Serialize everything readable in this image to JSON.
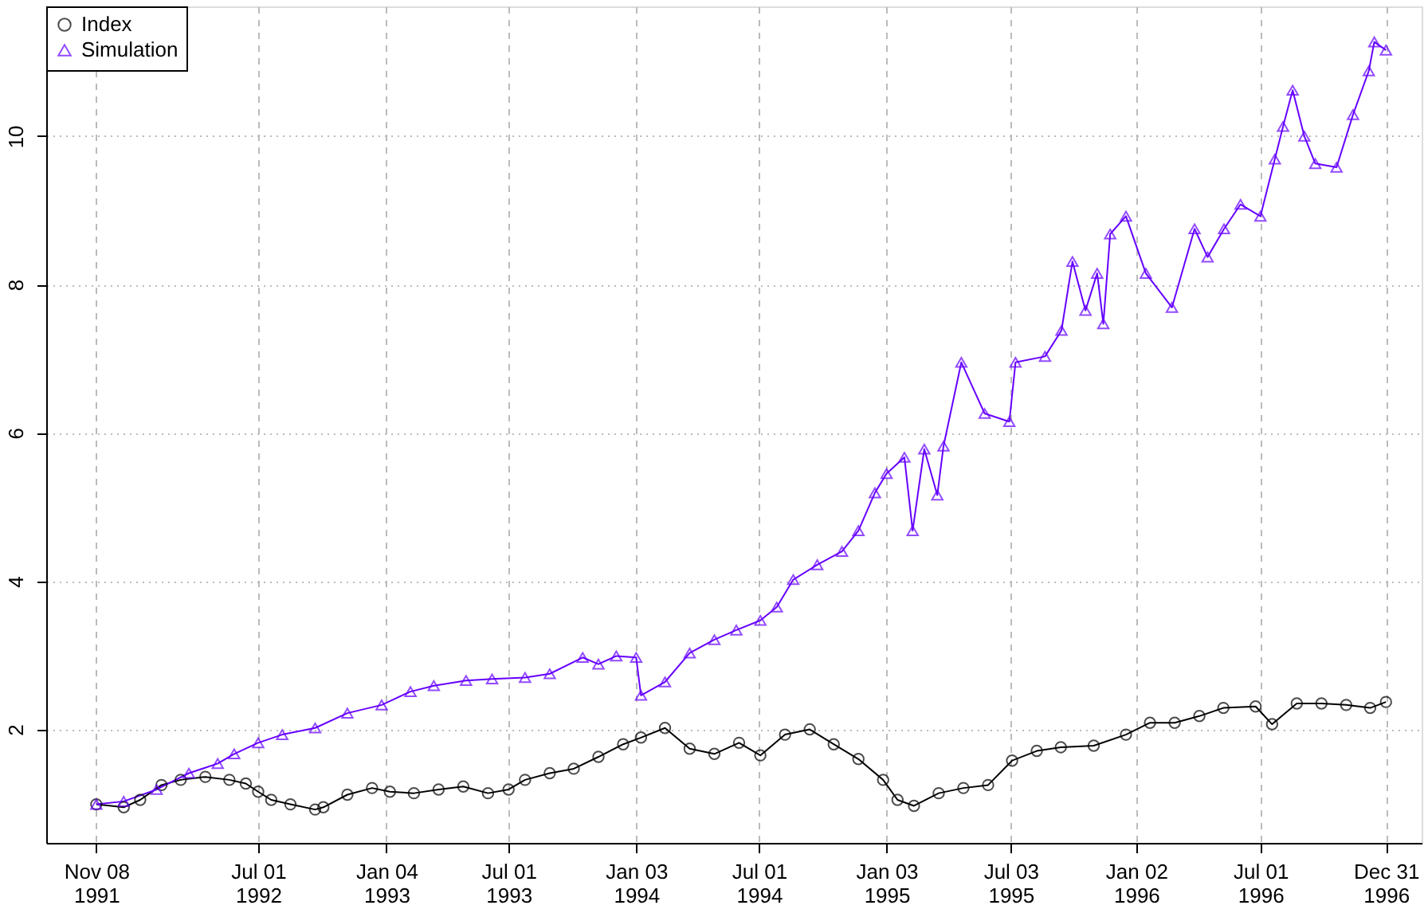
{
  "chart_data": {
    "type": "line",
    "xlim": [
      "1991-08-27",
      "1997-02-21"
    ],
    "xticks": [
      {
        "value": "1991-11-08",
        "label": "Nov 08\n1991"
      },
      {
        "value": "1992-07-01",
        "label": "Jul 01\n1992"
      },
      {
        "value": "1993-01-04",
        "label": "Jan 04\n1993"
      },
      {
        "value": "1993-07-01",
        "label": "Jul 01\n1993"
      },
      {
        "value": "1994-01-03",
        "label": "Jan 03\n1994"
      },
      {
        "value": "1994-07-01",
        "label": "Jul 01\n1994"
      },
      {
        "value": "1995-01-03",
        "label": "Jan 03\n1995"
      },
      {
        "value": "1995-07-03",
        "label": "Jul 03\n1995"
      },
      {
        "value": "1996-01-02",
        "label": "Jan 02\n1996"
      },
      {
        "value": "1996-07-01",
        "label": "Jul 01\n1996"
      },
      {
        "value": "1996-12-31",
        "label": "Dec 31\n1996"
      }
    ],
    "ylim": [
      0.47,
      11.75
    ],
    "yticks": [
      2,
      4,
      6,
      8,
      10
    ],
    "grid": true,
    "legend": "top left",
    "series": [
      {
        "name": "Index",
        "color": "#000000",
        "marker": "circle",
        "x": [
          "1991-11-08",
          "1991-12-18",
          "1992-01-11",
          "1992-02-11",
          "1992-03-10",
          "1992-04-15",
          "1992-05-20",
          "1992-06-13",
          "1992-07-01",
          "1992-07-20",
          "1992-08-17",
          "1992-09-22",
          "1992-10-04",
          "1992-11-08",
          "1992-12-14",
          "1993-01-09",
          "1993-02-13",
          "1993-03-21",
          "1993-04-26",
          "1993-06-01",
          "1993-07-01",
          "1993-07-25",
          "1993-08-30",
          "1993-10-04",
          "1993-11-09",
          "1993-12-15",
          "1994-01-10",
          "1994-02-14",
          "1994-03-22",
          "1994-04-27",
          "1994-06-02",
          "1994-07-03",
          "1994-08-08",
          "1994-09-13",
          "1994-10-18",
          "1994-11-23",
          "1994-12-29",
          "1995-01-19",
          "1995-02-12",
          "1995-03-20",
          "1995-04-25",
          "1995-05-31",
          "1995-07-05",
          "1995-08-10",
          "1995-09-14",
          "1995-11-01",
          "1995-12-18",
          "1996-01-22",
          "1996-02-27",
          "1996-04-03",
          "1996-05-08",
          "1996-06-24",
          "1996-07-18",
          "1996-08-23",
          "1996-09-28",
          "1996-11-03",
          "1996-12-08",
          "1996-12-31"
        ],
        "values": [
          0.99,
          0.95,
          1.05,
          1.25,
          1.32,
          1.36,
          1.32,
          1.27,
          1.16,
          1.05,
          0.99,
          0.92,
          0.95,
          1.12,
          1.21,
          1.16,
          1.14,
          1.19,
          1.23,
          1.14,
          1.19,
          1.32,
          1.41,
          1.47,
          1.63,
          1.8,
          1.89,
          2.02,
          1.74,
          1.67,
          1.82,
          1.65,
          1.93,
          2.0,
          1.8,
          1.6,
          1.32,
          1.05,
          0.97,
          1.14,
          1.21,
          1.25,
          1.58,
          1.71,
          1.76,
          1.78,
          1.93,
          2.09,
          2.09,
          2.18,
          2.29,
          2.31,
          2.07,
          2.35,
          2.35,
          2.33,
          2.29,
          2.37
        ]
      },
      {
        "name": "Simulation",
        "color": "#6600ff",
        "marker": "triangle",
        "x": [
          "1991-11-08",
          "1991-12-18",
          "1992-02-04",
          "1992-03-22",
          "1992-05-03",
          "1992-05-27",
          "1992-07-01",
          "1992-08-05",
          "1992-09-22",
          "1992-11-08",
          "1992-12-28",
          "1993-02-08",
          "1993-03-14",
          "1993-04-30",
          "1993-06-07",
          "1993-07-25",
          "1993-08-30",
          "1993-10-17",
          "1993-11-09",
          "1993-12-05",
          "1994-01-03",
          "1994-01-10",
          "1994-02-14",
          "1994-03-22",
          "1994-04-27",
          "1994-05-29",
          "1994-07-03",
          "1994-07-27",
          "1994-08-20",
          "1994-09-24",
          "1994-10-30",
          "1994-11-23",
          "1994-12-17",
          "1995-01-03",
          "1995-01-29",
          "1995-02-10",
          "1995-02-27",
          "1995-03-18",
          "1995-03-27",
          "1995-04-22",
          "1995-05-26",
          "1995-07-01",
          "1995-07-10",
          "1995-08-22",
          "1995-09-15",
          "1995-10-01",
          "1995-10-20",
          "1995-11-06",
          "1995-11-15",
          "1995-11-25",
          "1995-12-18",
          "1996-01-16",
          "1996-02-23",
          "1996-03-27",
          "1996-04-15",
          "1996-05-09",
          "1996-06-02",
          "1996-07-01",
          "1996-07-22",
          "1996-08-03",
          "1996-08-17",
          "1996-09-03",
          "1996-09-19",
          "1996-10-20",
          "1996-11-13",
          "1996-12-06",
          "1996-12-14",
          "1996-12-31"
        ],
        "values": [
          0.99,
          1.03,
          1.19,
          1.41,
          1.54,
          1.67,
          1.82,
          1.93,
          2.02,
          2.22,
          2.33,
          2.51,
          2.59,
          2.66,
          2.68,
          2.7,
          2.75,
          2.97,
          2.88,
          2.99,
          2.97,
          2.46,
          2.64,
          3.03,
          3.21,
          3.34,
          3.47,
          3.65,
          4.02,
          4.22,
          4.4,
          4.68,
          5.19,
          5.45,
          5.67,
          4.68,
          5.78,
          5.16,
          5.82,
          6.95,
          6.26,
          6.15,
          6.95,
          7.03,
          7.38,
          8.31,
          7.65,
          8.15,
          7.47,
          8.68,
          8.92,
          8.15,
          7.69,
          8.75,
          8.37,
          8.75,
          9.08,
          8.92,
          9.69,
          10.13,
          10.62,
          10.0,
          9.63,
          9.58,
          10.29,
          10.88,
          11.27,
          11.16
        ]
      }
    ]
  }
}
